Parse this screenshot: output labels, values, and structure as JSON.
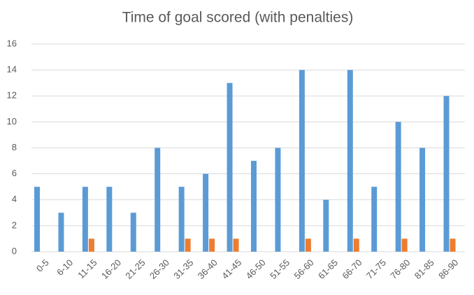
{
  "chart_data": {
    "type": "bar",
    "title": "Time of goal scored (with penalties)",
    "categories": [
      "0-5",
      "6-10",
      "11-15",
      "16-20",
      "21-25",
      "26-30",
      "31-35",
      "36-40",
      "41-45",
      "46-50",
      "51-55",
      "56-60",
      "61-65",
      "66-70",
      "71-75",
      "76-80",
      "81-85",
      "86-90"
    ],
    "series": [
      {
        "color": "#5b9bd5",
        "values": [
          5,
          3,
          5,
          5,
          3,
          8,
          5,
          6,
          13,
          7,
          8,
          14,
          4,
          14,
          5,
          10,
          8,
          12
        ]
      },
      {
        "color": "#ed7d31",
        "values": [
          0,
          0,
          1,
          0,
          0,
          0,
          1,
          1,
          1,
          0,
          0,
          1,
          0,
          1,
          0,
          1,
          0,
          1
        ]
      }
    ],
    "ylim": [
      0,
      16
    ],
    "yticks": [
      0,
      2,
      4,
      6,
      8,
      10,
      12,
      14,
      16
    ],
    "grid": true
  }
}
